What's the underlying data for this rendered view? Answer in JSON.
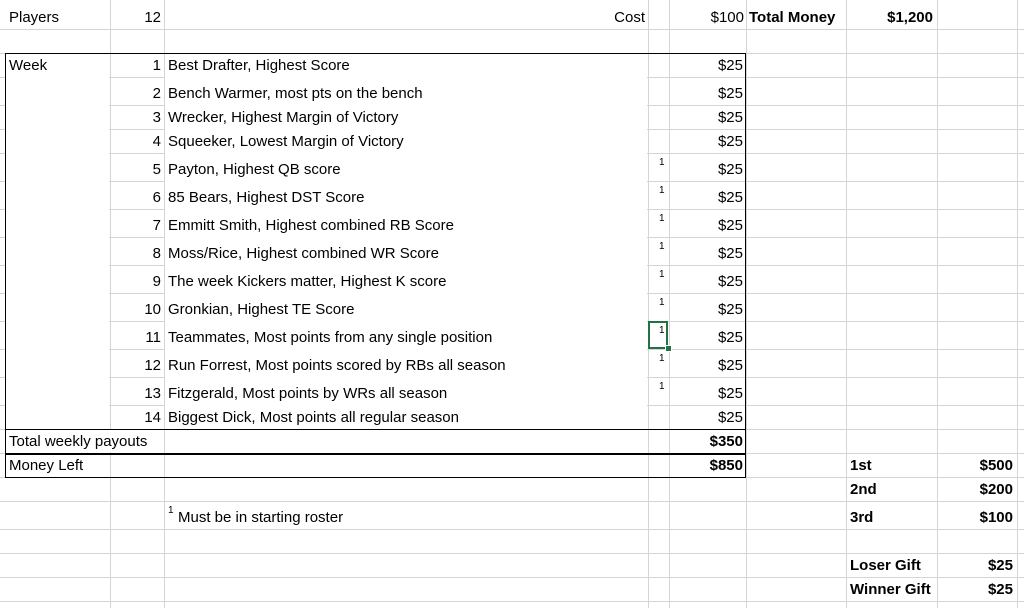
{
  "header": {
    "players_label": "Players",
    "players_value": "12",
    "cost_label": "Cost",
    "cost_value": "$100",
    "total_money_label": "Total Money",
    "total_money_value": "$1,200"
  },
  "week_label": "Week",
  "footnote_marker": "1",
  "weeks": [
    {
      "num": "1",
      "desc": "Best Drafter, Highest Score",
      "note": "",
      "payout": "$25"
    },
    {
      "num": "2",
      "desc": "Bench Warmer, most pts on the bench",
      "note": "",
      "payout": "$25"
    },
    {
      "num": "3",
      "desc": "Wrecker, Highest Margin of Victory",
      "note": "",
      "payout": "$25"
    },
    {
      "num": "4",
      "desc": "Squeeker, Lowest Margin of Victory",
      "note": "",
      "payout": "$25"
    },
    {
      "num": "5",
      "desc": "Payton, Highest QB score",
      "note": "1",
      "payout": "$25"
    },
    {
      "num": "6",
      "desc": "85 Bears, Highest DST Score",
      "note": "1",
      "payout": "$25"
    },
    {
      "num": "7",
      "desc": "Emmitt Smith, Highest combined RB Score",
      "note": "1",
      "payout": "$25"
    },
    {
      "num": "8",
      "desc": "Moss/Rice, Highest combined WR Score",
      "note": "1",
      "payout": "$25"
    },
    {
      "num": "9",
      "desc": "The week Kickers matter, Highest K score",
      "note": "1",
      "payout": "$25"
    },
    {
      "num": "10",
      "desc": "Gronkian, Highest TE Score",
      "note": "1",
      "payout": "$25"
    },
    {
      "num": "11",
      "desc": "Teammates, Most points from any single position",
      "note": "1",
      "payout": "$25"
    },
    {
      "num": "12",
      "desc": "Run Forrest, Most points scored by RBs all season",
      "note": "1",
      "payout": "$25"
    },
    {
      "num": "13",
      "desc": "Fitzgerald, Most points by WRs all season",
      "note": "1",
      "payout": "$25"
    },
    {
      "num": "14",
      "desc": "Biggest Dick, Most points all regular season",
      "note": "",
      "payout": "$25"
    }
  ],
  "totals": {
    "weekly_label": "Total weekly payouts",
    "weekly_value": "$350",
    "left_label": "Money Left",
    "left_value": "$850"
  },
  "footnote_text": "Must be in starting roster",
  "prizes": [
    {
      "label": "1st",
      "value": "$500"
    },
    {
      "label": "2nd",
      "value": "$200"
    },
    {
      "label": "3rd",
      "value": "$100"
    },
    {
      "label": "Loser Gift",
      "value": "$25"
    },
    {
      "label": "Winner Gift",
      "value": "$25"
    }
  ]
}
